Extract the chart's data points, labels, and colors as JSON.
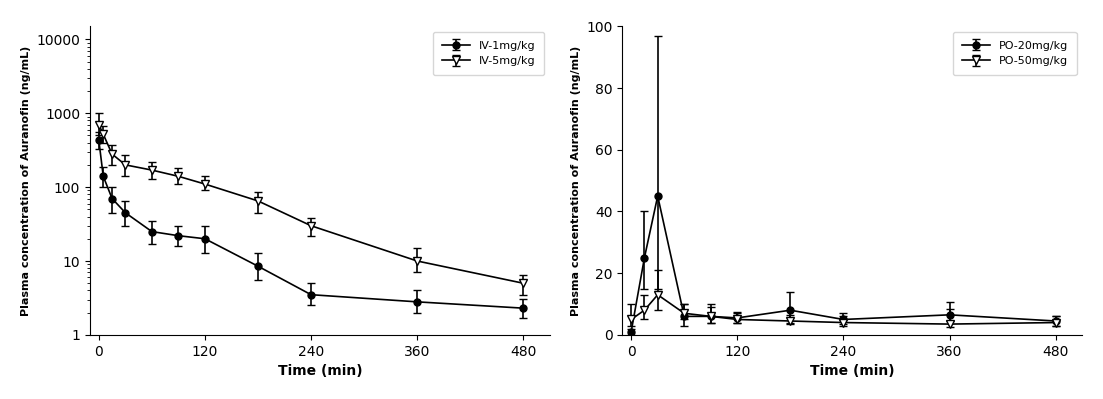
{
  "iv_time": [
    0,
    5,
    15,
    30,
    60,
    90,
    120,
    180,
    240,
    360,
    480
  ],
  "iv1_mean": [
    430,
    140,
    70,
    45,
    25,
    22,
    20,
    8.5,
    3.5,
    2.8,
    2.3
  ],
  "iv1_err_low": [
    100,
    40,
    25,
    15,
    8,
    6,
    7,
    3,
    1,
    0.8,
    0.6
  ],
  "iv1_err_high": [
    120,
    50,
    30,
    20,
    10,
    8,
    10,
    4.5,
    1.5,
    1.2,
    0.8
  ],
  "iv5_mean": [
    700,
    520,
    280,
    200,
    170,
    140,
    110,
    65,
    30,
    10,
    5
  ],
  "iv5_err_low": [
    200,
    130,
    80,
    60,
    40,
    30,
    20,
    20,
    8,
    3,
    1.5
  ],
  "iv5_err_high": [
    300,
    150,
    90,
    70,
    50,
    40,
    30,
    20,
    8,
    5,
    1.5
  ],
  "po_time": [
    0,
    15,
    30,
    60,
    90,
    120,
    180,
    240,
    360,
    480
  ],
  "po20_mean": [
    1,
    25,
    45,
    6,
    6,
    5.5,
    8,
    5,
    6.5,
    4.5
  ],
  "po20_err_low": [
    1,
    10,
    30,
    3,
    2,
    1.5,
    4,
    1.5,
    2,
    1.5
  ],
  "po20_err_high": [
    1,
    15,
    52,
    4,
    3,
    2,
    6,
    2,
    4,
    1.5
  ],
  "po50_mean": [
    5,
    8,
    13,
    7,
    6,
    5,
    4.5,
    4,
    3.5,
    4
  ],
  "po50_err_low": [
    2,
    3,
    5,
    2,
    2,
    1,
    1,
    1,
    1,
    1
  ],
  "po50_err_high": [
    5,
    5,
    8,
    3,
    4,
    2,
    2,
    2,
    5,
    2
  ],
  "ylabel_left": "Plasma concentration of Auranofin (ng/mL)",
  "ylabel_right": "Plasma concentration of Auranofin (ng/mL)",
  "xlabel": "Time (min)",
  "legend_iv": [
    "IV-1mg/kg",
    "IV-5mg/kg"
  ],
  "legend_po": [
    "PO-20mg/kg",
    "PO-50mg/kg"
  ],
  "xticks": [
    0,
    120,
    240,
    360,
    480
  ],
  "ylim_right": [
    0,
    100
  ],
  "yticks_right": [
    0,
    20,
    40,
    60,
    80,
    100
  ],
  "background_color": "#ffffff",
  "line_color": "#000000"
}
